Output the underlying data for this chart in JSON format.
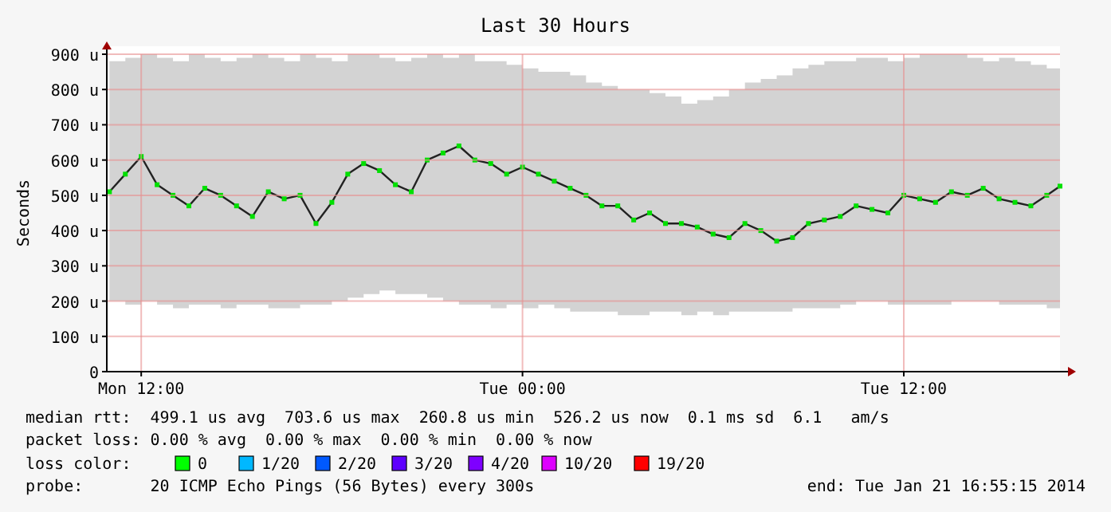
{
  "chart_data": {
    "type": "line",
    "title": "Last 30 Hours",
    "ylabel": "Seconds",
    "x": [
      "2014-01-20T11:00",
      "2014-01-20T11:30",
      "2014-01-20T12:00",
      "2014-01-20T12:30",
      "2014-01-20T13:00",
      "2014-01-20T13:30",
      "2014-01-20T14:00",
      "2014-01-20T14:30",
      "2014-01-20T15:00",
      "2014-01-20T15:30",
      "2014-01-20T16:00",
      "2014-01-20T16:30",
      "2014-01-20T17:00",
      "2014-01-20T17:30",
      "2014-01-20T18:00",
      "2014-01-20T18:30",
      "2014-01-20T19:00",
      "2014-01-20T19:30",
      "2014-01-20T20:00",
      "2014-01-20T20:30",
      "2014-01-20T21:00",
      "2014-01-20T21:30",
      "2014-01-20T22:00",
      "2014-01-20T22:30",
      "2014-01-20T23:00",
      "2014-01-20T23:30",
      "2014-01-21T00:00",
      "2014-01-21T00:30",
      "2014-01-21T01:00",
      "2014-01-21T01:30",
      "2014-01-21T02:00",
      "2014-01-21T02:30",
      "2014-01-21T03:00",
      "2014-01-21T03:30",
      "2014-01-21T04:00",
      "2014-01-21T04:30",
      "2014-01-21T05:00",
      "2014-01-21T05:30",
      "2014-01-21T06:00",
      "2014-01-21T06:30",
      "2014-01-21T07:00",
      "2014-01-21T07:30",
      "2014-01-21T08:00",
      "2014-01-21T08:30",
      "2014-01-21T09:00",
      "2014-01-21T09:30",
      "2014-01-21T10:00",
      "2014-01-21T10:30",
      "2014-01-21T11:00",
      "2014-01-21T11:30",
      "2014-01-21T12:00",
      "2014-01-21T12:30",
      "2014-01-21T13:00",
      "2014-01-21T13:30",
      "2014-01-21T14:00",
      "2014-01-21T14:30",
      "2014-01-21T15:00",
      "2014-01-21T15:30",
      "2014-01-21T16:00",
      "2014-01-21T16:30",
      "2014-01-21T16:55"
    ],
    "series": [
      {
        "color": "#00e000",
        "marker": "square",
        "values": [
          510,
          560,
          610,
          530,
          500,
          470,
          520,
          500,
          470,
          440,
          510,
          490,
          500,
          420,
          480,
          560,
          590,
          570,
          530,
          510,
          600,
          620,
          640,
          600,
          590,
          560,
          580,
          560,
          540,
          520,
          500,
          470,
          470,
          430,
          450,
          420,
          420,
          410,
          390,
          380,
          420,
          400,
          370,
          380,
          420,
          430,
          440,
          470,
          460,
          450,
          500,
          490,
          480,
          510,
          500,
          520,
          490,
          480,
          470,
          500,
          526
        ],
        "lower": [
          200,
          190,
          200,
          190,
          180,
          190,
          190,
          180,
          190,
          190,
          180,
          180,
          190,
          190,
          200,
          210,
          220,
          230,
          220,
          220,
          210,
          200,
          190,
          190,
          180,
          190,
          180,
          190,
          180,
          170,
          170,
          170,
          160,
          160,
          170,
          170,
          160,
          170,
          160,
          170,
          170,
          170,
          170,
          180,
          180,
          180,
          190,
          200,
          200,
          190,
          190,
          190,
          190,
          200,
          200,
          200,
          190,
          190,
          190,
          180,
          190
        ],
        "upper": [
          880,
          890,
          900,
          890,
          880,
          900,
          890,
          880,
          890,
          900,
          890,
          880,
          900,
          890,
          880,
          900,
          900,
          890,
          880,
          890,
          900,
          890,
          900,
          880,
          880,
          870,
          860,
          850,
          850,
          840,
          820,
          810,
          800,
          800,
          790,
          780,
          760,
          770,
          780,
          800,
          820,
          830,
          840,
          860,
          870,
          880,
          880,
          890,
          890,
          880,
          890,
          900,
          900,
          900,
          890,
          880,
          890,
          880,
          870,
          860,
          850
        ]
      }
    ],
    "xlim": [
      "2014-01-20T10:55",
      "2014-01-21T16:55"
    ],
    "xticks": [
      {
        "value": "2014-01-20T12:00",
        "label": "Mon 12:00"
      },
      {
        "value": "2014-01-21T00:00",
        "label": "Tue 00:00"
      },
      {
        "value": "2014-01-21T12:00",
        "label": "Tue 12:00"
      }
    ],
    "ylim": [
      0,
      900
    ],
    "yticks": [
      {
        "value": 0,
        "label": "0"
      },
      {
        "value": 100,
        "label": "100 u"
      },
      {
        "value": 200,
        "label": "200 u"
      },
      {
        "value": 300,
        "label": "300 u"
      },
      {
        "value": 400,
        "label": "400 u"
      },
      {
        "value": 500,
        "label": "500 u"
      },
      {
        "value": 600,
        "label": "600 u"
      },
      {
        "value": 700,
        "label": "700 u"
      },
      {
        "value": 800,
        "label": "800 u"
      },
      {
        "value": 900,
        "label": "900 u"
      }
    ],
    "grid": true,
    "annotations": [
      "median rtt:  499.1 us avg  703.6 us max  260.8 us min  526.2 us now  0.1 ms sd  6.1   am/s",
      "packet loss: 0.00 % avg  0.00 % max  0.00 % min  0.00 % now",
      "loss color:",
      "0",
      "1/20",
      "2/20",
      "3/20",
      "4/20",
      "10/20",
      "19/20",
      "probe:       20 ICMP Echo Pings (56 Bytes) every 300s",
      "end: Tue Jan 21 16:55:15 2014"
    ]
  }
}
